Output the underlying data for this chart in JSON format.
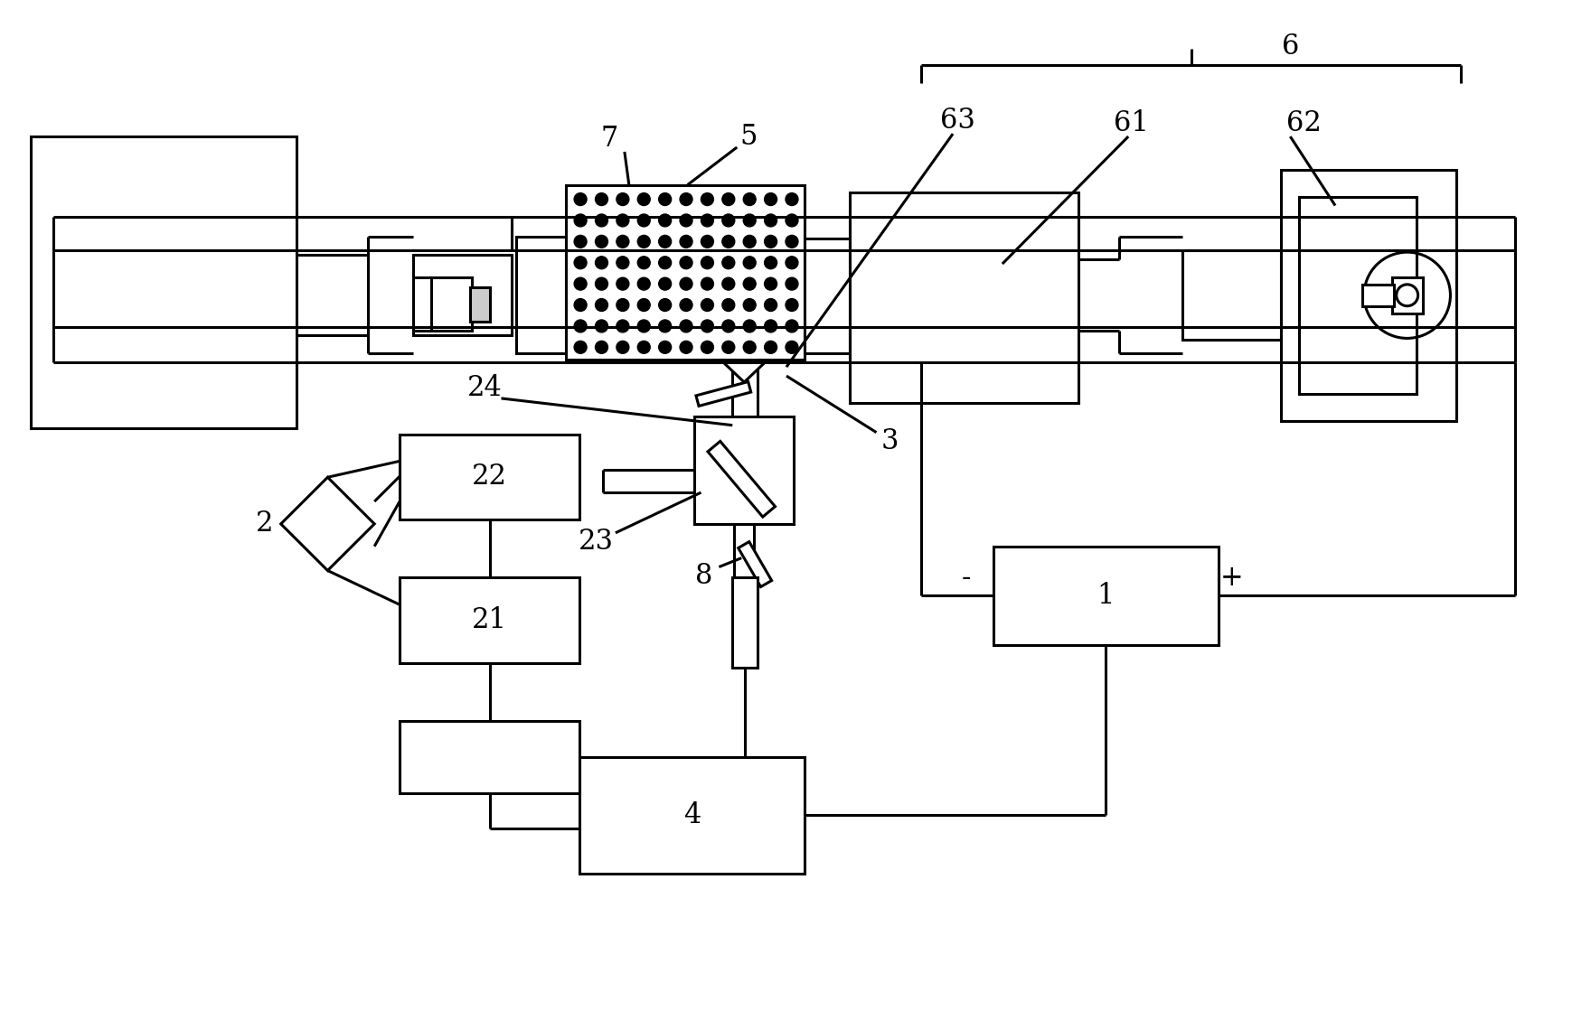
{
  "bg": "#ffffff",
  "lc": "#000000",
  "lw": 2.2,
  "fw": 17.39,
  "fh": 11.29,
  "dpi": 100
}
